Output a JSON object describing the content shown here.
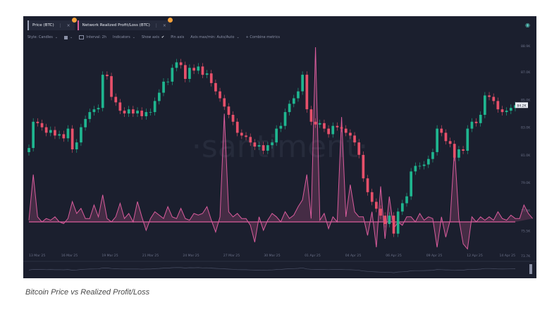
{
  "tabs": [
    {
      "label": "Price (BTC)",
      "color": "#9aa0b4"
    },
    {
      "label": "Network Realized Profit/Loss (BTC)",
      "color": "#d95c9c"
    }
  ],
  "toolbar": {
    "style": "Style: Candles",
    "interval": "Interval: 2h",
    "indicators": "Indicators",
    "show_axis": "Show axis",
    "pin_axis": "Pin axis",
    "axis_max_min": "Axis max/min: Auto/Auto",
    "combine": "+ Combine metrics"
  },
  "watermark": "·santiment·",
  "caption": "Bitcoin Price vs Realized Profit/Loss",
  "current_price_label": "84.2K",
  "colors": {
    "up": "#1fb58f",
    "down": "#e7506a",
    "pnl": "#d95c9c",
    "bg": "#1b1f2e"
  },
  "chart_data": {
    "type": "line",
    "x_tick_labels": [
      "13 Mar 25",
      "16 Mar 25",
      "19 Mar 25",
      "21 Mar 25",
      "24 Mar 25",
      "27 Mar 25",
      "30 Mar 25",
      "01 Apr 25",
      "04 Apr 25",
      "06 Apr 25",
      "09 Apr 25",
      "12 Apr 25",
      "14 Apr 25"
    ],
    "y_tick_labels": [
      "88.9K",
      "87.0K",
      "85.0K",
      "83.0K",
      "81.0K",
      "79.0K",
      "77.0K",
      "75.5K",
      "73.7K"
    ],
    "y_ticks": [
      88900,
      87000,
      85000,
      83000,
      81000,
      79000,
      77000,
      75500,
      73700
    ],
    "ylim": [
      73700,
      89000
    ],
    "series": [
      {
        "values": [
          81500,
          83400,
          83300,
          83000,
          82600,
          82800,
          82400,
          82500,
          82200,
          82900,
          81400,
          81900,
          83000,
          83600,
          84100,
          84300,
          84400,
          86800,
          86700,
          85200,
          84800,
          84200,
          84000,
          84300,
          84000,
          84200,
          83800,
          84100,
          84100,
          84900,
          85500,
          86300,
          86300,
          87300,
          87700,
          87500,
          86500,
          87300,
          87100,
          87400,
          86800,
          86900,
          86200,
          85600,
          85100,
          84500,
          83900,
          83400,
          82600,
          82400,
          82300,
          81900,
          81600,
          81700,
          81300,
          81700,
          81900,
          82900,
          83100,
          84100,
          84700,
          85100,
          85600,
          86800,
          84300,
          83400,
          83200,
          83300,
          82900,
          82500,
          83100,
          83000,
          82900,
          82600,
          82400,
          81900,
          81000,
          79300,
          78300,
          77600,
          77100,
          76600,
          76000,
          76600,
          75300,
          76900,
          77500,
          78000,
          79800,
          80200,
          80200,
          80300,
          80700,
          81200,
          82900,
          82600,
          82000,
          81800,
          80800,
          81400,
          81300,
          82900,
          83400,
          83300,
          83900,
          85300,
          85200,
          84900,
          84300,
          84100,
          84200,
          84400,
          84600
        ]
      },
      {
        "values": [
          0.1,
          2.8,
          0.3,
          0.0,
          0.2,
          0.1,
          0.3,
          0.0,
          -0.1,
          0.2,
          1.2,
          0.5,
          0.8,
          0.2,
          0.2,
          1.0,
          0.3,
          1.6,
          0.2,
          0.0,
          0.3,
          1.1,
          0.2,
          0.5,
          0.0,
          1.2,
          0.3,
          -0.5,
          0.2,
          0.6,
          0.4,
          0.2,
          0.9,
          0.3,
          0.2,
          0.8,
          0.2,
          0.1,
          0.5,
          0.4,
          0.5,
          0.9,
          0.1,
          -0.6,
          0.3,
          6.4,
          0.6,
          0.3,
          0.5,
          0.2,
          0.2,
          -0.2,
          -1.2,
          0.3,
          -0.5,
          0.1,
          0.5,
          0.3,
          0.0,
          0.6,
          0.2,
          0.4,
          0.9,
          1.3,
          2.8,
          0.2,
          10.5,
          0.1,
          0.5,
          -0.4,
          0.3,
          0.0,
          6.2,
          0.3,
          2.2,
          0.6,
          0.3,
          0.3,
          -0.8,
          0.6,
          -1.5,
          2.1,
          -1.0,
          1.5,
          -0.4,
          0.0,
          -0.2,
          0.3,
          0.3,
          0.0,
          0.5,
          0.1,
          0.3,
          0.2,
          -1.5,
          0.3,
          -0.9,
          0.1,
          4.4,
          0.2,
          -1.3,
          -1.6,
          0.3,
          0.0,
          0.3,
          0.1,
          0.3,
          0.1,
          0.6,
          0.2,
          0.1,
          0.4,
          0.2,
          0.2,
          1.0,
          0.5,
          0.2
        ]
      }
    ]
  }
}
